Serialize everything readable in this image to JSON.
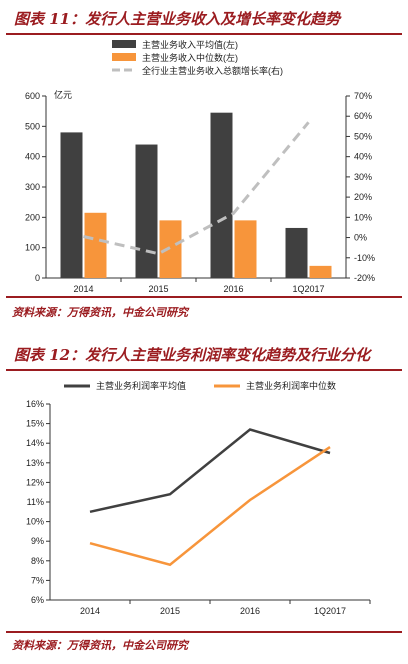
{
  "figures": [
    {
      "title": "图表 11：发行人主营业务收入及增长率变化趋势",
      "source": "资料来源：万得资讯，中金公司研究"
    },
    {
      "title": "图表 12：发行人主营业务利润率变化趋势及行业分化",
      "source": "资料来源：万得资讯，中金公司研究"
    }
  ],
  "chart_data": [
    {
      "type": "bar",
      "categories": [
        "2014",
        "2015",
        "2016",
        "1Q2017"
      ],
      "unit_label": "亿元",
      "y_left": {
        "lim": [
          0,
          600
        ],
        "ticks": [
          "0",
          "100",
          "200",
          "300",
          "400",
          "500",
          "600"
        ]
      },
      "y_right": {
        "lim": [
          -20,
          70
        ],
        "ticks": [
          "-20%",
          "-10%",
          "0%",
          "10%",
          "20%",
          "30%",
          "40%",
          "50%",
          "60%",
          "70%"
        ]
      },
      "series": [
        {
          "name": "主营业务收入平均值(左)",
          "kind": "bar",
          "axis": "left",
          "color": "#404040",
          "values": [
            480,
            440,
            545,
            165
          ]
        },
        {
          "name": "主营业务收入中位数(左)",
          "kind": "bar",
          "axis": "left",
          "color": "#f7953b",
          "values": [
            215,
            190,
            190,
            40
          ]
        },
        {
          "name": "全行业主营业务收入总额增长率(右)",
          "kind": "line",
          "axis": "right",
          "color": "#bfbfbf",
          "dashed": true,
          "values": [
            0.5,
            -8,
            12,
            57
          ]
        }
      ],
      "grid": false,
      "legend": "top"
    },
    {
      "type": "line",
      "categories": [
        "2014",
        "2015",
        "2016",
        "1Q2017"
      ],
      "y_left": {
        "lim": [
          6,
          16
        ],
        "ticks": [
          "6%",
          "7%",
          "8%",
          "9%",
          "10%",
          "11%",
          "12%",
          "13%",
          "14%",
          "15%",
          "16%"
        ]
      },
      "series": [
        {
          "name": "主营业务利润率平均值",
          "color": "#404040",
          "values": [
            10.5,
            11.4,
            14.7,
            13.5
          ]
        },
        {
          "name": "主营业务利润率中位数",
          "color": "#f7953b",
          "values": [
            8.9,
            7.8,
            11.1,
            13.8
          ]
        }
      ],
      "grid": false,
      "legend": "top"
    }
  ]
}
